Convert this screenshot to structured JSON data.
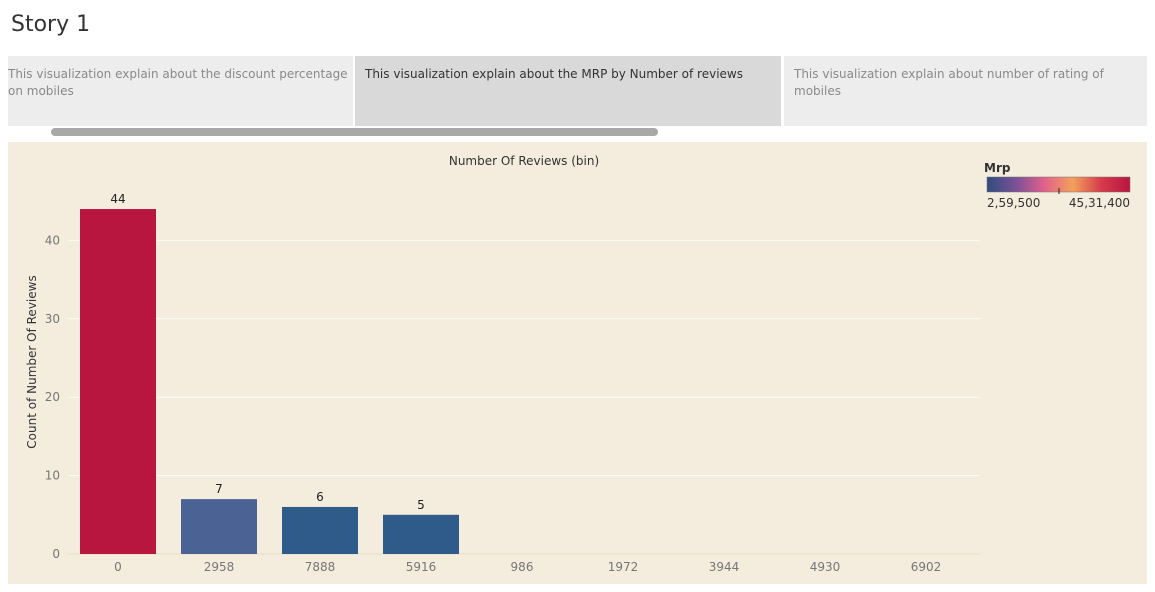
{
  "story": {
    "title": "Story 1"
  },
  "story_points": [
    {
      "caption": "This visualization explain about the discount percentage on mobiles",
      "active": false
    },
    {
      "caption": "This visualization explain about the MRP by Number of reviews",
      "active": true
    },
    {
      "caption": "This visualization explain about number of rating of mobiles",
      "active": false
    }
  ],
  "chart_data": {
    "type": "bar",
    "title": "Number Of Reviews (bin)",
    "ylabel": "Count of Number Of Reviews",
    "xlabel": "",
    "categories": [
      "0",
      "2958",
      "7888",
      "5916",
      "986",
      "1972",
      "3944",
      "4930",
      "6902"
    ],
    "values": [
      44,
      7,
      6,
      5,
      null,
      null,
      null,
      null,
      null
    ],
    "data_labels": [
      "44",
      "7",
      "6",
      "5",
      "",
      "",
      "",
      "",
      ""
    ],
    "bar_colors": [
      "#b8163f",
      "#4a6294",
      "#2e5b8a",
      "#2e5b8a",
      "",
      "",
      "",
      "",
      ""
    ],
    "yticks": [
      0,
      10,
      20,
      30,
      40
    ],
    "ytick_labels": [
      "0",
      "10",
      "20",
      "30",
      "40"
    ],
    "ylim": [
      0,
      47
    ],
    "grid": true,
    "legend": {
      "title": "Mrp",
      "min_label": "2,59,500",
      "max_label": "45,31,400",
      "placement": "top-right",
      "gradient_colors": [
        "#2f4d7e",
        "#7a5096",
        "#e0618a",
        "#f3a05c",
        "#d63a4b",
        "#b8163f"
      ]
    }
  }
}
